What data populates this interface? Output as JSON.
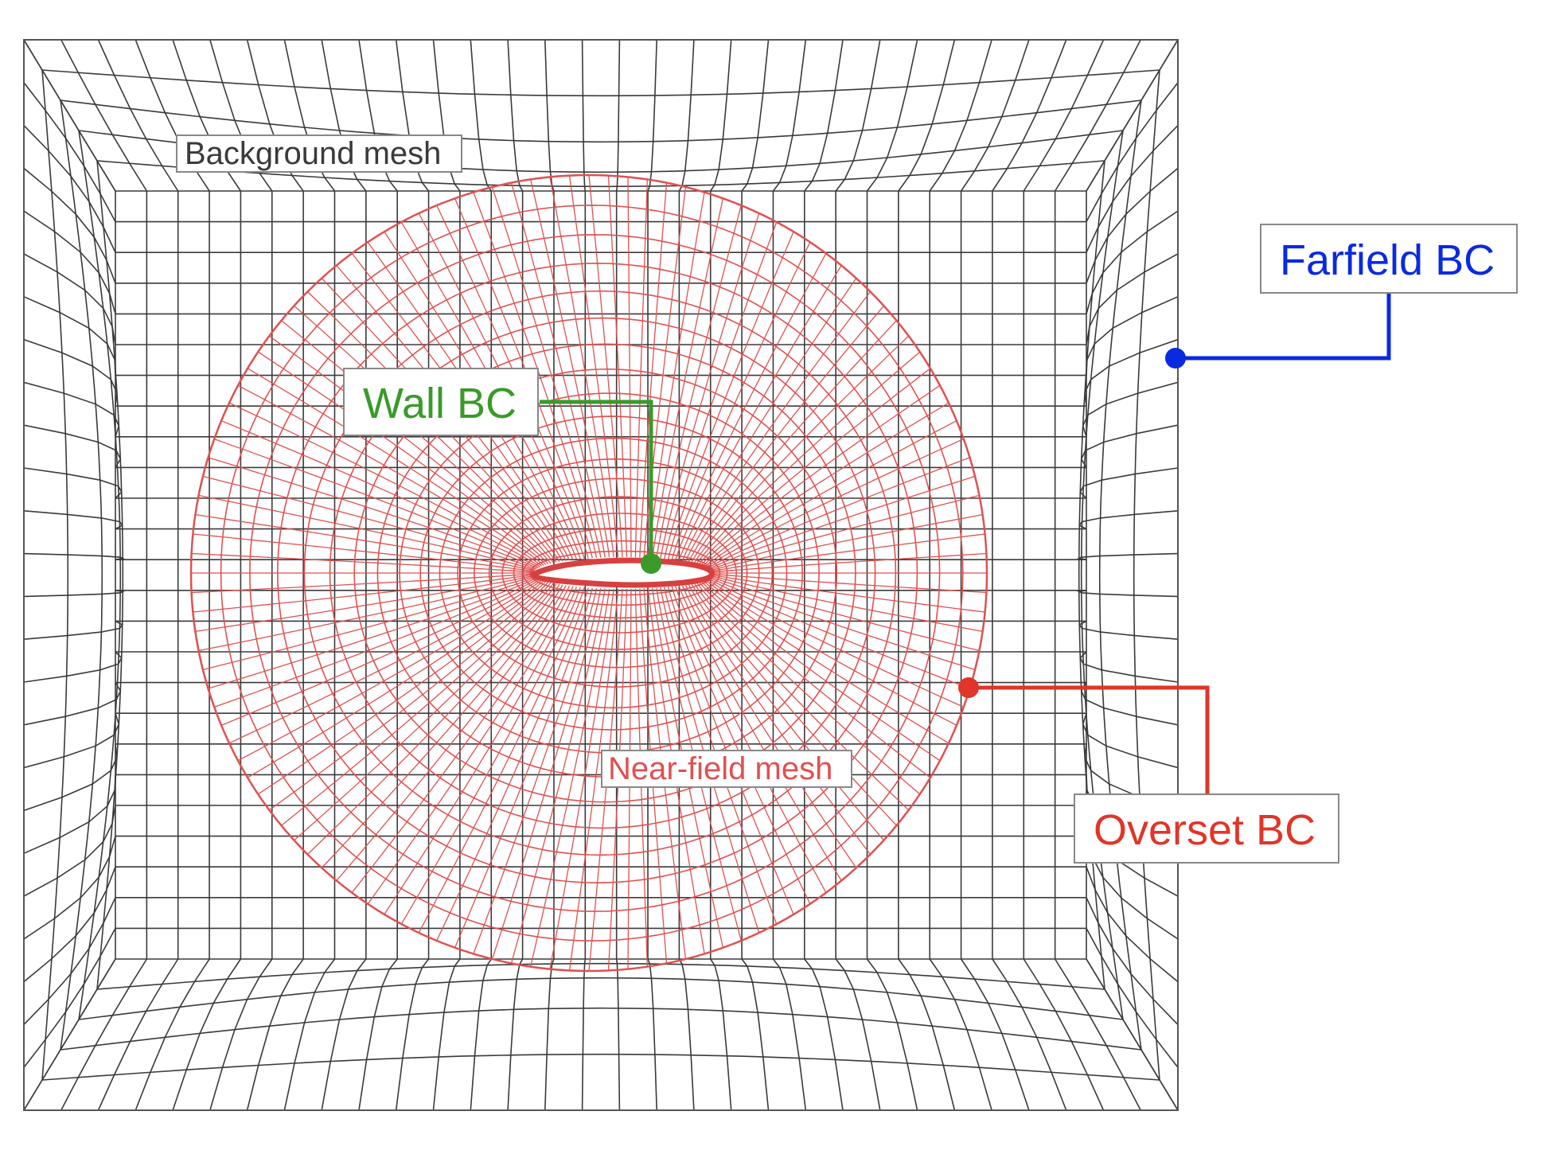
{
  "labels": {
    "background_mesh": "Background mesh",
    "near_field_mesh": "Near-field mesh",
    "wall_bc": "Wall BC",
    "farfield_bc": "Farfield BC",
    "overset_bc": "Overset BC"
  },
  "colors": {
    "background_mesh": "#3a3a3a",
    "near_field_mesh": "#e05050",
    "wall_bc": "#3a9a2a",
    "farfield_bc": "#0a2ae0",
    "overset_bc": "#e03528",
    "tag_border": "#888888"
  }
}
